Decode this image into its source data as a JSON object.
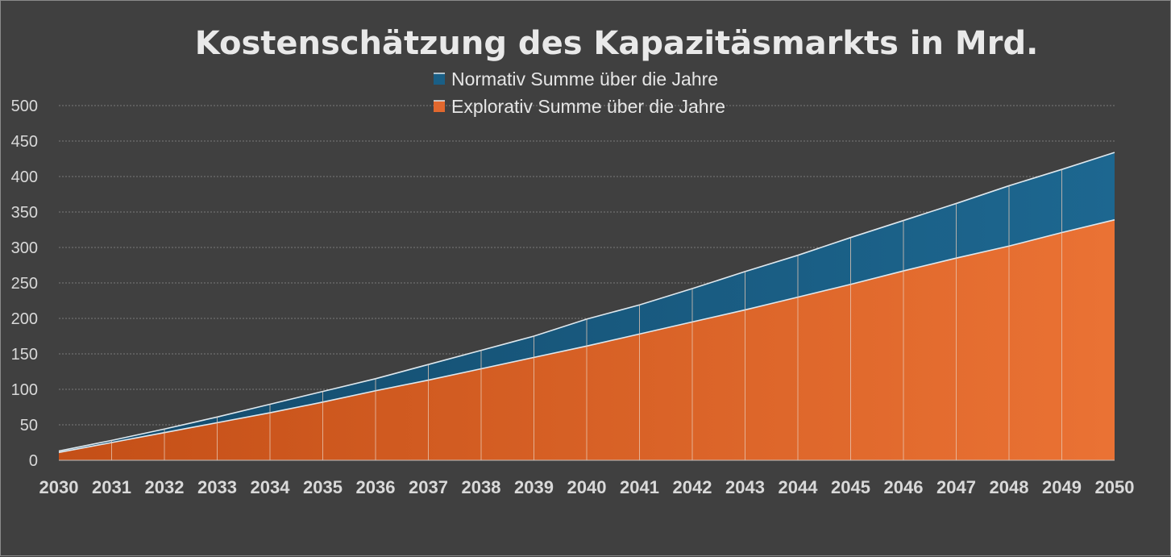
{
  "chart_data": {
    "type": "area",
    "stacked": false,
    "title": "Kostenschätzung des Kapazitäsmarkts in Mrd.",
    "xlabel": "",
    "ylabel": "",
    "x": [
      "2030",
      "2031",
      "2032",
      "2033",
      "2034",
      "2035",
      "2036",
      "2037",
      "2038",
      "2039",
      "2040",
      "2041",
      "2042",
      "2043",
      "2044",
      "2045",
      "2046",
      "2047",
      "2048",
      "2049",
      "2050"
    ],
    "ylim": [
      0,
      500
    ],
    "yticks": [
      "0",
      "50",
      "100",
      "150",
      "200",
      "250",
      "300",
      "350",
      "400",
      "450",
      "500"
    ],
    "grid": true,
    "legend_position": "top",
    "series": [
      {
        "name": "Normativ Summe über die Jahre",
        "color": "#1a5f86",
        "values": [
          13,
          28,
          44,
          61,
          79,
          97,
          115,
          135,
          155,
          175,
          199,
          219,
          242,
          266,
          289,
          314,
          338,
          362,
          387,
          410,
          434
        ]
      },
      {
        "name": "Explorativ Summe über die Jahre",
        "color": "#e2682e",
        "values": [
          11,
          25,
          39,
          53,
          67,
          82,
          98,
          113,
          129,
          145,
          161,
          178,
          195,
          212,
          230,
          248,
          267,
          285,
          302,
          321,
          339
        ]
      }
    ]
  }
}
